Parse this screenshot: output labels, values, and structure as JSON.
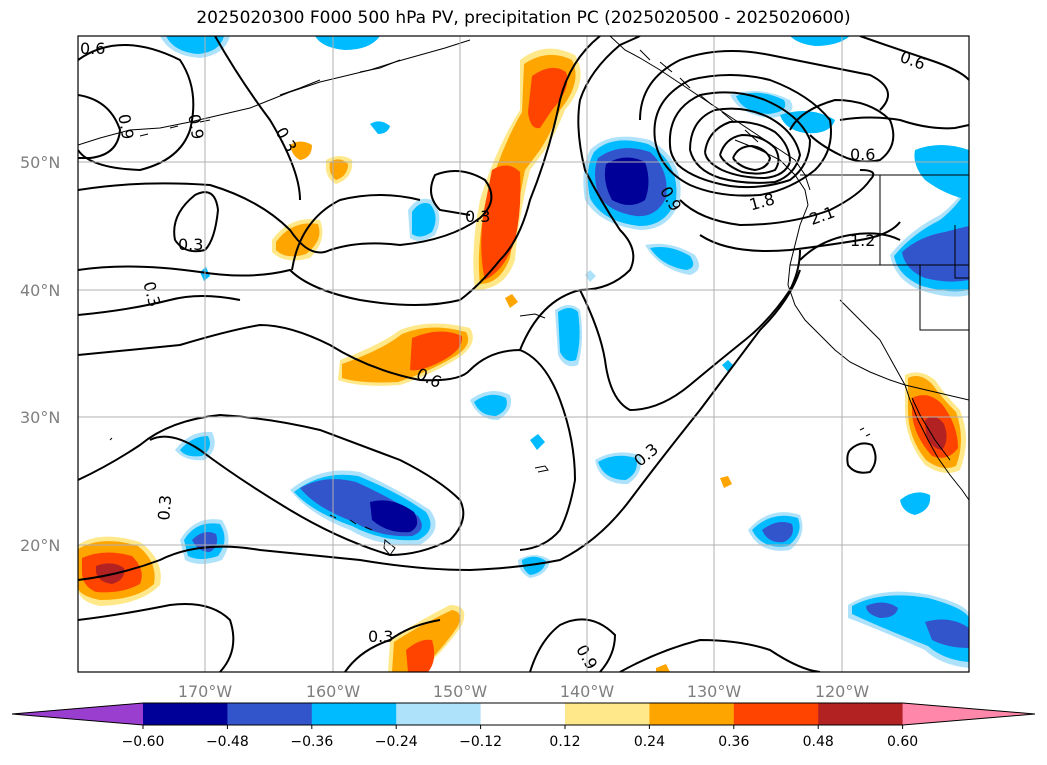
{
  "title": "2025020300 F000 500 hPa PV, precipitation PC (2025020500 - 2025020600)",
  "map": {
    "lat_labels": [
      "50°N",
      "40°N",
      "30°N",
      "20°N"
    ],
    "lon_labels": [
      "170°W",
      "160°W",
      "150°W",
      "140°W",
      "130°W",
      "120°W"
    ],
    "contour_labels": [
      "0.6",
      "0.9",
      "0.9",
      "0.3",
      "0.3",
      "0.3",
      "0.3",
      "0.6",
      "0.3",
      "0.3",
      "0.3",
      "0.9",
      "0.9",
      "0.6",
      "0.6",
      "1.2",
      "2.1",
      "1.8"
    ]
  },
  "colorbar": {
    "ticks": [
      "−0.60",
      "−0.48",
      "−0.36",
      "−0.24",
      "−0.12",
      "0.12",
      "0.24",
      "0.36",
      "0.48",
      "0.60"
    ],
    "colors": [
      "#9a3ed0",
      "#000099",
      "#3355cc",
      "#00bbff",
      "#aee2fb",
      "#ffffff",
      "#ffe88a",
      "#ffa500",
      "#ff4400",
      "#b22222",
      "#ff88aa"
    ]
  }
}
